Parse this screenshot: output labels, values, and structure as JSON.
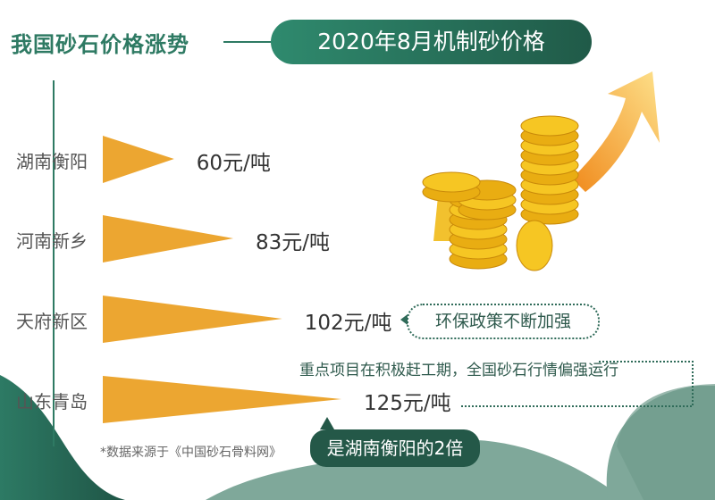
{
  "title": "我国砂石价格涨势",
  "subtitle": "2020年8月机制砂价格",
  "chart_data": {
    "type": "bar",
    "orientation": "horizontal",
    "categories": [
      "湖南衡阳",
      "河南新乡",
      "天府新区",
      "山东青岛"
    ],
    "values": [
      60,
      83,
      102,
      125
    ],
    "value_labels": [
      "60元/吨",
      "83元/吨",
      "102元/吨",
      "125元/吨"
    ],
    "unit": "元/吨",
    "bar_color": "#eca631",
    "grid": false
  },
  "notes": {
    "policy": "环保政策不断加强",
    "projects": "重点项目在积极赶工期，全国砂石行情偏强运行",
    "comparison": "是湖南衡阳的2倍"
  },
  "source": "*数据来源于《中国砂石骨料网》",
  "colors": {
    "primary_green": "#2e7a63",
    "dark_green": "#245848",
    "orange": "#eca631",
    "hill": "#7fa89a"
  }
}
